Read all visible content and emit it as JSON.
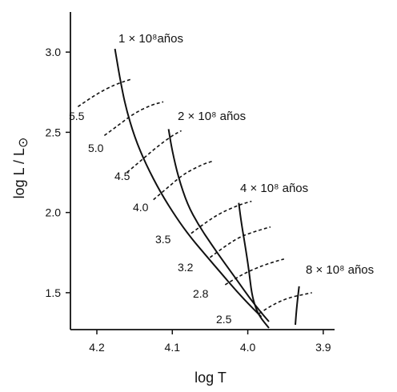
{
  "chart_data": {
    "type": "line",
    "title": "",
    "xlabel": "log  T",
    "ylabel": "log  L / L",
    "ylabel_symbol": "⊙",
    "x_axis_reversed": true,
    "xlim": [
      4.235,
      3.885
    ],
    "ylim": [
      1.27,
      3.25
    ],
    "xticks": [
      4.2,
      4.1,
      4.0,
      3.9
    ],
    "xtick_labels": [
      "4.2",
      "4.1",
      "4.0",
      "3.9"
    ],
    "yticks": [
      1.5,
      2.0,
      2.5,
      3.0
    ],
    "ytick_labels": [
      "1.5",
      "2.0",
      "2.5",
      "3.0"
    ],
    "grid": false,
    "legend": "none",
    "isochrones": [
      {
        "label": "1 × 10⁸años",
        "points": [
          [
            4.176,
            3.02
          ],
          [
            4.17,
            2.85
          ],
          [
            4.162,
            2.66
          ],
          [
            4.15,
            2.47
          ],
          [
            4.135,
            2.3
          ],
          [
            4.115,
            2.12
          ],
          [
            4.095,
            1.97
          ],
          [
            4.075,
            1.84
          ],
          [
            4.055,
            1.73
          ],
          [
            4.035,
            1.62
          ],
          [
            4.015,
            1.51
          ],
          [
            3.995,
            1.41
          ],
          [
            3.982,
            1.35
          ]
        ]
      },
      {
        "label": "2 × 10⁸  años",
        "points": [
          [
            4.105,
            2.52
          ],
          [
            4.1,
            2.38
          ],
          [
            4.092,
            2.22
          ],
          [
            4.08,
            2.05
          ],
          [
            4.065,
            1.92
          ],
          [
            4.048,
            1.8
          ],
          [
            4.03,
            1.68
          ],
          [
            4.013,
            1.57
          ],
          [
            3.998,
            1.47
          ],
          [
            3.983,
            1.38
          ],
          [
            3.972,
            1.32
          ]
        ]
      },
      {
        "label": "4 × 10⁸ años",
        "points": [
          [
            4.012,
            2.06
          ],
          [
            4.008,
            1.92
          ],
          [
            4.002,
            1.75
          ],
          [
            3.998,
            1.62
          ],
          [
            3.995,
            1.5
          ],
          [
            3.99,
            1.41
          ],
          [
            3.984,
            1.35
          ],
          [
            3.972,
            1.28
          ]
        ]
      },
      {
        "label": "8 × 10⁸ años",
        "points": [
          [
            3.932,
            1.54
          ],
          [
            3.935,
            1.42
          ],
          [
            3.937,
            1.3
          ]
        ]
      }
    ],
    "mass_tracks": [
      {
        "label": "5.5",
        "points": [
          [
            4.225,
            2.66
          ],
          [
            4.2,
            2.74
          ],
          [
            4.175,
            2.8
          ],
          [
            4.155,
            2.83
          ]
        ]
      },
      {
        "label": "5.0",
        "points": [
          [
            4.19,
            2.48
          ],
          [
            4.17,
            2.55
          ],
          [
            4.15,
            2.62
          ],
          [
            4.128,
            2.67
          ],
          [
            4.112,
            2.69
          ]
        ]
      },
      {
        "label": "4.5",
        "points": [
          [
            4.16,
            2.25
          ],
          [
            4.14,
            2.33
          ],
          [
            4.12,
            2.41
          ],
          [
            4.1,
            2.48
          ],
          [
            4.088,
            2.51
          ]
        ]
      },
      {
        "label": "4.0",
        "points": [
          [
            4.125,
            2.08
          ],
          [
            4.105,
            2.16
          ],
          [
            4.085,
            2.24
          ],
          [
            4.06,
            2.3
          ],
          [
            4.047,
            2.32
          ]
        ]
      },
      {
        "label": "3.5",
        "points": [
          [
            4.075,
            1.87
          ],
          [
            4.055,
            1.94
          ],
          [
            4.035,
            2.0
          ],
          [
            4.01,
            2.05
          ],
          [
            3.995,
            2.07
          ]
        ]
      },
      {
        "label": "3.2",
        "points": [
          [
            4.05,
            1.72
          ],
          [
            4.03,
            1.79
          ],
          [
            4.01,
            1.85
          ],
          [
            3.985,
            1.89
          ],
          [
            3.97,
            1.91
          ]
        ]
      },
      {
        "label": "2.8",
        "points": [
          [
            4.03,
            1.55
          ],
          [
            4.005,
            1.62
          ],
          [
            3.98,
            1.67
          ],
          [
            3.96,
            1.7
          ],
          [
            3.952,
            1.71
          ]
        ]
      },
      {
        "label": "2.5",
        "points": [
          [
            3.985,
            1.37
          ],
          [
            3.965,
            1.43
          ],
          [
            3.945,
            1.47
          ],
          [
            3.925,
            1.49
          ],
          [
            3.915,
            1.5
          ]
        ]
      }
    ]
  }
}
